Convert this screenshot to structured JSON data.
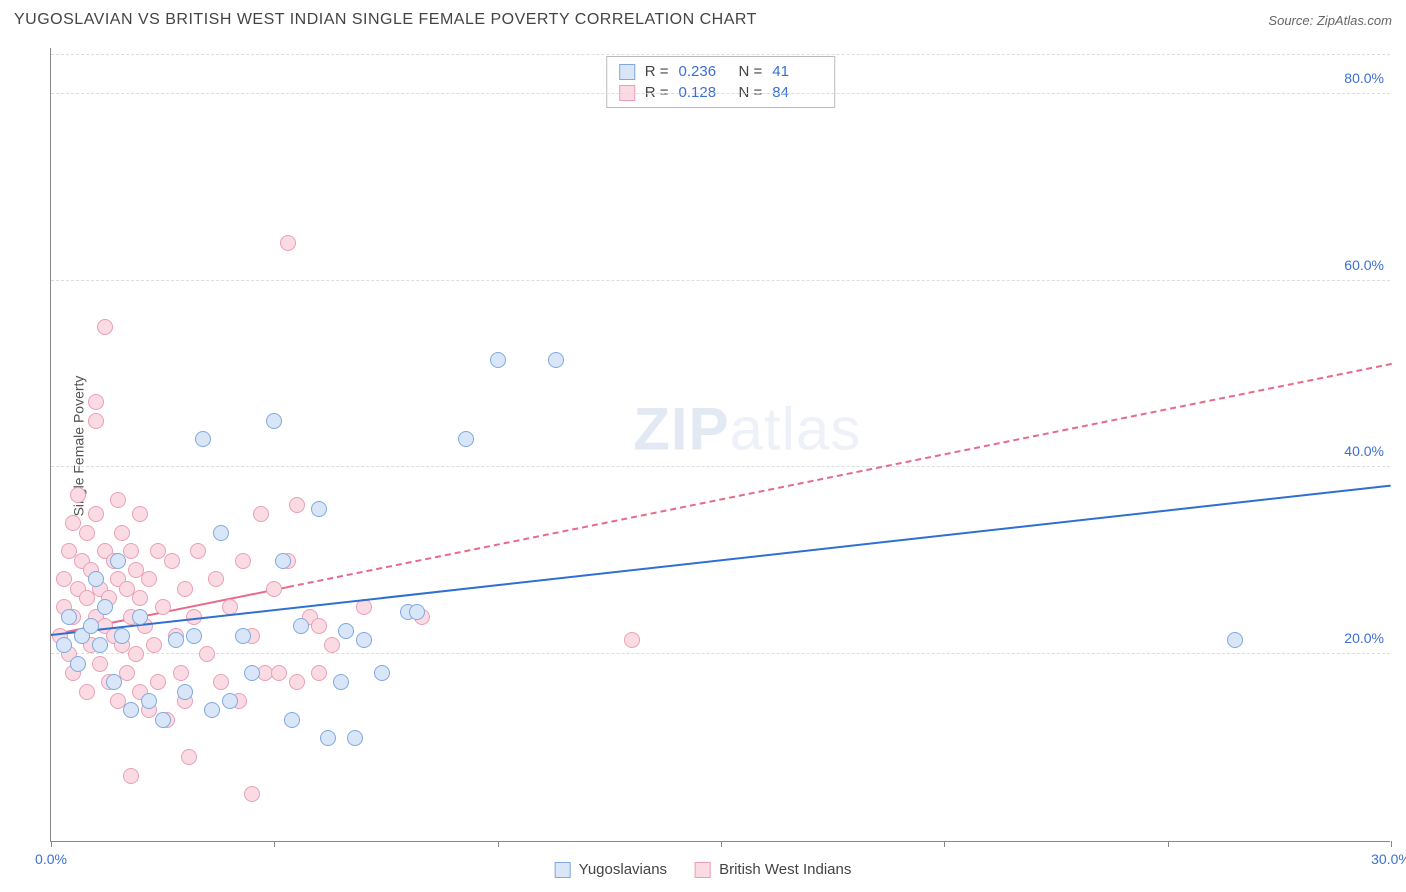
{
  "header": {
    "title": "YUGOSLAVIAN VS BRITISH WEST INDIAN SINGLE FEMALE POVERTY CORRELATION CHART",
    "source_label": "Source:",
    "source_value": "ZipAtlas.com"
  },
  "watermark": {
    "part1": "ZIP",
    "part2": "atlas"
  },
  "chart": {
    "type": "scatter",
    "ylabel": "Single Female Poverty",
    "xlim": [
      0,
      30
    ],
    "ylim": [
      0,
      85
    ],
    "xticks": [
      0,
      5,
      10,
      15,
      20,
      25,
      30
    ],
    "xtick_labels": {
      "0": "0.0%",
      "30": "30.0%"
    },
    "yticks": [
      20,
      40,
      60,
      80
    ],
    "ytick_labels": {
      "20": "20.0%",
      "40": "40.0%",
      "60": "60.0%",
      "80": "80.0%"
    },
    "background_color": "#ffffff",
    "grid_color": "#dddddd",
    "axis_color": "#888888",
    "tick_label_color": "#3b6fd6",
    "label_fontsize": 14,
    "marker_radius": 8,
    "series": [
      {
        "name": "Yugoslavians",
        "fill": "#d9e6f7",
        "stroke": "#7fa8e0",
        "R": "0.236",
        "N": "41",
        "trend": {
          "x1": 0,
          "y1": 22,
          "x2": 30,
          "y2": 38,
          "solid_until_x": 30,
          "color": "#2f6fd0",
          "width": 2.5
        },
        "points": [
          [
            0.3,
            21
          ],
          [
            0.4,
            24
          ],
          [
            0.6,
            19
          ],
          [
            0.7,
            22
          ],
          [
            0.9,
            23
          ],
          [
            1.0,
            28
          ],
          [
            1.1,
            21
          ],
          [
            1.2,
            25
          ],
          [
            1.4,
            17
          ],
          [
            1.5,
            30
          ],
          [
            1.6,
            22
          ],
          [
            1.8,
            14
          ],
          [
            2.0,
            24
          ],
          [
            2.2,
            15
          ],
          [
            2.5,
            13
          ],
          [
            2.8,
            21.5
          ],
          [
            3.0,
            16
          ],
          [
            3.2,
            22
          ],
          [
            3.4,
            43
          ],
          [
            3.6,
            14
          ],
          [
            3.8,
            33
          ],
          [
            4.0,
            15
          ],
          [
            4.3,
            22
          ],
          [
            4.5,
            18
          ],
          [
            5.0,
            45
          ],
          [
            5.2,
            30
          ],
          [
            5.4,
            13
          ],
          [
            5.6,
            23
          ],
          [
            6.0,
            35.5
          ],
          [
            6.2,
            11
          ],
          [
            6.5,
            17
          ],
          [
            6.6,
            22.5
          ],
          [
            6.8,
            11
          ],
          [
            7.0,
            21.5
          ],
          [
            7.4,
            18
          ],
          [
            8.0,
            24.5
          ],
          [
            8.2,
            24.5
          ],
          [
            9.3,
            43
          ],
          [
            10.0,
            51.5
          ],
          [
            11.3,
            51.5
          ],
          [
            26.5,
            21.5
          ]
        ]
      },
      {
        "name": "British West Indians",
        "fill": "#fadbe3",
        "stroke": "#eaa0b4",
        "R": "0.128",
        "N": "84",
        "trend": {
          "x1": 0,
          "y1": 22,
          "x2": 30,
          "y2": 51,
          "solid_until_x": 5.3,
          "color": "#e86a8a",
          "width": 2,
          "dash": true
        },
        "points": [
          [
            0.2,
            22
          ],
          [
            0.3,
            25
          ],
          [
            0.3,
            28
          ],
          [
            0.4,
            20
          ],
          [
            0.4,
            31
          ],
          [
            0.5,
            18
          ],
          [
            0.5,
            24
          ],
          [
            0.5,
            34
          ],
          [
            0.6,
            27
          ],
          [
            0.6,
            37
          ],
          [
            0.7,
            22
          ],
          [
            0.7,
            30
          ],
          [
            0.8,
            16
          ],
          [
            0.8,
            26
          ],
          [
            0.8,
            33
          ],
          [
            0.9,
            21
          ],
          [
            0.9,
            29
          ],
          [
            1.0,
            24
          ],
          [
            1.0,
            35
          ],
          [
            1.0,
            45
          ],
          [
            1.1,
            19
          ],
          [
            1.1,
            27
          ],
          [
            1.2,
            23
          ],
          [
            1.2,
            31
          ],
          [
            1.2,
            55
          ],
          [
            1.3,
            17
          ],
          [
            1.3,
            26
          ],
          [
            1.4,
            22
          ],
          [
            1.4,
            30
          ],
          [
            1.5,
            15
          ],
          [
            1.5,
            28
          ],
          [
            1.5,
            36.5
          ],
          [
            1.6,
            21
          ],
          [
            1.6,
            33
          ],
          [
            1.7,
            18
          ],
          [
            1.7,
            27
          ],
          [
            1.8,
            24
          ],
          [
            1.8,
            31
          ],
          [
            1.8,
            7
          ],
          [
            1.9,
            20
          ],
          [
            1.9,
            29
          ],
          [
            2.0,
            16
          ],
          [
            2.0,
            26
          ],
          [
            2.0,
            35
          ],
          [
            2.1,
            23
          ],
          [
            2.2,
            14
          ],
          [
            2.2,
            28
          ],
          [
            2.3,
            21
          ],
          [
            2.4,
            17
          ],
          [
            2.4,
            31
          ],
          [
            2.5,
            25
          ],
          [
            2.6,
            13
          ],
          [
            2.7,
            30
          ],
          [
            2.8,
            22
          ],
          [
            2.9,
            18
          ],
          [
            3.0,
            27
          ],
          [
            3.0,
            15
          ],
          [
            3.1,
            9
          ],
          [
            3.2,
            24
          ],
          [
            3.3,
            31
          ],
          [
            3.5,
            20
          ],
          [
            3.7,
            28
          ],
          [
            3.8,
            17
          ],
          [
            4.0,
            25
          ],
          [
            4.2,
            15
          ],
          [
            4.3,
            30
          ],
          [
            4.5,
            22
          ],
          [
            4.5,
            5
          ],
          [
            4.7,
            35
          ],
          [
            4.8,
            18
          ],
          [
            5.0,
            27
          ],
          [
            5.1,
            18
          ],
          [
            5.3,
            30
          ],
          [
            5.3,
            64
          ],
          [
            5.5,
            17
          ],
          [
            5.5,
            36
          ],
          [
            5.8,
            24
          ],
          [
            6.0,
            18
          ],
          [
            6.0,
            23
          ],
          [
            6.3,
            21
          ],
          [
            7.0,
            25
          ],
          [
            8.3,
            24
          ],
          [
            13.0,
            21.5
          ],
          [
            1.0,
            47
          ]
        ]
      }
    ]
  },
  "legend": {
    "stats_rows": [
      {
        "swatch_fill": "#d9e6f7",
        "swatch_stroke": "#7fa8e0",
        "R_label": "R =",
        "R": "0.236",
        "N_label": "N =",
        "N": "41"
      },
      {
        "swatch_fill": "#fadbe3",
        "swatch_stroke": "#eaa0b4",
        "R_label": "R =",
        "R": "0.128",
        "N_label": "N =",
        "N": "84"
      }
    ],
    "bottom": [
      {
        "swatch_fill": "#d9e6f7",
        "swatch_stroke": "#7fa8e0",
        "label": "Yugoslavians"
      },
      {
        "swatch_fill": "#fadbe3",
        "swatch_stroke": "#eaa0b4",
        "label": "British West Indians"
      }
    ]
  }
}
